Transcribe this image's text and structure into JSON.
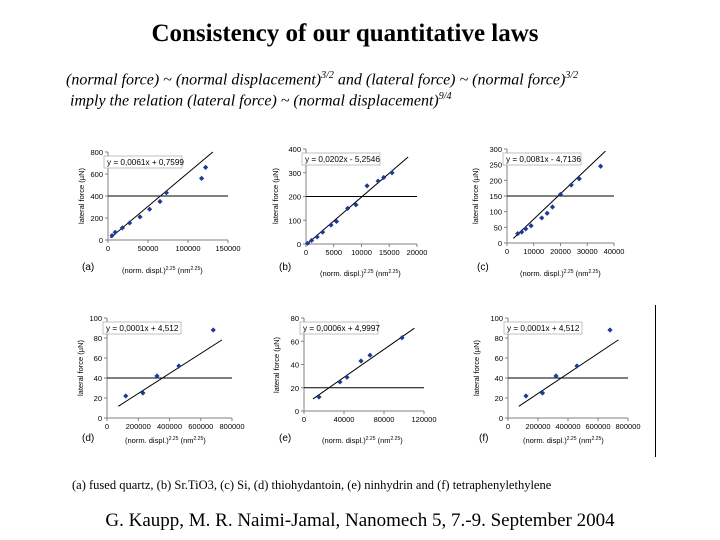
{
  "title": "Consistency of our quantitative laws",
  "subtitle": {
    "l1_a": "(normal force) ~ (normal displacement)",
    "l1_b": "3/2",
    "l1_c": " and  (lateral force) ~ (normal force)",
    "l1_d": "3/2",
    "l2_a": " imply the relation (lateral force) ~ (normal displacement)",
    "l2_b": "9/4"
  },
  "caption": "(a) fused quartz, (b) Sr.TiO3, (c) Si, (d) thiohydantoin, (e) ninhydrin and (f) tetraphenylethylene",
  "footer": "G. Kaupp, M. R. Naimi-Jamal, Nanomech 5, 7.-9. September 2004",
  "colors": {
    "marker": "#1f3a93",
    "line": "#000000",
    "axis": "#808080",
    "grid": "#c0c0c0"
  },
  "chart_data": [
    {
      "panel": "(a)",
      "type": "scatter",
      "equation": "y = 0,0061x + 0,7599",
      "ylabel": "lateral force (µN)",
      "xlabel": "(norm. displ.)",
      "xsup": "2.25",
      "xunit": "(nm",
      "xunit_sup": "2.25",
      "xunit_end": ")",
      "xlim": [
        0,
        150000
      ],
      "ylim": [
        0,
        800
      ],
      "xticks": [
        0,
        50000,
        100000,
        150000
      ],
      "xtick_labels": [
        "0",
        "50000",
        "100000",
        "150000"
      ],
      "yticks": [
        0,
        200,
        400,
        600,
        800
      ],
      "ytick_labels": [
        "0",
        "200",
        "400",
        "600",
        "800"
      ],
      "ref_y": 400,
      "fit": {
        "slope": 0.0061,
        "intercept": 0.7599
      },
      "points": [
        [
          5000,
          40
        ],
        [
          9000,
          70
        ],
        [
          18000,
          110
        ],
        [
          27000,
          155
        ],
        [
          40000,
          210
        ],
        [
          52000,
          280
        ],
        [
          65000,
          350
        ],
        [
          73000,
          430
        ],
        [
          117000,
          560
        ],
        [
          122000,
          660
        ]
      ]
    },
    {
      "panel": "(b)",
      "type": "scatter",
      "equation": "y = 0,0202x - 5,2546",
      "ylabel": "lateral force (µN)",
      "xlabel": "(norm. displ.)",
      "xsup": "2.25",
      "xunit": "(nm",
      "xunit_sup": "2.25",
      "xunit_end": ")",
      "xlim": [
        0,
        20000
      ],
      "ylim": [
        0,
        400
      ],
      "xticks": [
        0,
        5000,
        10000,
        15000,
        20000
      ],
      "xtick_labels": [
        "0",
        "5000",
        "10000",
        "15000",
        "20000"
      ],
      "yticks": [
        0,
        100,
        200,
        300,
        400
      ],
      "ytick_labels": [
        "0",
        "100",
        "200",
        "300",
        "400"
      ],
      "ref_y": 200,
      "fit": {
        "slope": 0.0202,
        "intercept": -5.2546
      },
      "points": [
        [
          300,
          3
        ],
        [
          1000,
          15
        ],
        [
          2000,
          30
        ],
        [
          3000,
          50
        ],
        [
          4500,
          80
        ],
        [
          5500,
          95
        ],
        [
          7500,
          150
        ],
        [
          9000,
          165
        ],
        [
          11000,
          245
        ],
        [
          13000,
          265
        ],
        [
          14000,
          280
        ],
        [
          15500,
          300
        ]
      ]
    },
    {
      "panel": "(c)",
      "type": "scatter",
      "equation": "y = 0,0081x - 4,7136",
      "ylabel": "lateral force (µN)",
      "xlabel": "(norm. displ.)",
      "xsup": "2.25",
      "xunit": "(nm",
      "xunit_sup": "2.25",
      "xunit_end": ")",
      "xlim": [
        0,
        40000
      ],
      "ylim": [
        0,
        300
      ],
      "xticks": [
        0,
        10000,
        20000,
        30000,
        40000
      ],
      "xtick_labels": [
        "0",
        "10000",
        "20000",
        "30000",
        "40000"
      ],
      "yticks": [
        0,
        50,
        100,
        150,
        200,
        250,
        300
      ],
      "ytick_labels": [
        "0",
        "50",
        "100",
        "150",
        "200",
        "250",
        "300"
      ],
      "ref_y": 150,
      "fit": {
        "slope": 0.0081,
        "intercept": -4.7136
      },
      "points": [
        [
          4000,
          30
        ],
        [
          5500,
          35
        ],
        [
          7000,
          45
        ],
        [
          9000,
          55
        ],
        [
          13000,
          80
        ],
        [
          15000,
          95
        ],
        [
          17000,
          115
        ],
        [
          20000,
          155
        ],
        [
          24000,
          185
        ],
        [
          27000,
          205
        ],
        [
          35000,
          245
        ]
      ]
    },
    {
      "panel": "(d)",
      "type": "scatter",
      "equation": "y = 0,0001x + 4,512",
      "ylabel": "lateral force (µN)",
      "xlabel": "(norm. displ.)",
      "xsup": "2.25",
      "xunit": "(nm",
      "xunit_sup": "2.25",
      "xunit_end": ")",
      "xlim": [
        0,
        800000
      ],
      "ylim": [
        0,
        100
      ],
      "xticks": [
        0,
        200000,
        400000,
        600000,
        800000
      ],
      "xtick_labels": [
        "0",
        "200000",
        "400000",
        "600000",
        "800000"
      ],
      "yticks": [
        0,
        20,
        40,
        60,
        80,
        100
      ],
      "ytick_labels": [
        "0",
        "20",
        "40",
        "60",
        "80",
        "100"
      ],
      "ref_y": 40,
      "fit": {
        "slope": 0.0001,
        "intercept": 4.512
      },
      "points": [
        [
          120000,
          22
        ],
        [
          230000,
          25
        ],
        [
          320000,
          42
        ],
        [
          460000,
          52
        ],
        [
          680000,
          88
        ]
      ]
    },
    {
      "panel": "(e)",
      "type": "scatter",
      "equation": "y = 0,0006x + 4,9997",
      "ylabel": "lateral force (µN)",
      "xlabel": "(norm. displ.)",
      "xsup": "2.25",
      "xunit": "(nm",
      "xunit_sup": "2.25",
      "xunit_end": ")",
      "xlim": [
        0,
        120000
      ],
      "ylim": [
        0,
        80
      ],
      "xticks": [
        0,
        40000,
        80000,
        120000
      ],
      "xtick_labels": [
        "0",
        "40000",
        "80000",
        "120000"
      ],
      "yticks": [
        0,
        20,
        40,
        60,
        80
      ],
      "ytick_labels": [
        "0",
        "20",
        "40",
        "60",
        "80"
      ],
      "ref_y": 20,
      "fit": {
        "slope": 0.0006,
        "intercept": 4.9997
      },
      "points": [
        [
          15000,
          12
        ],
        [
          36000,
          25
        ],
        [
          43000,
          29
        ],
        [
          57000,
          43
        ],
        [
          66000,
          48
        ],
        [
          98000,
          63
        ]
      ]
    },
    {
      "panel": "(f)",
      "type": "scatter",
      "equation": "y = 0,0001x + 4,512",
      "ylabel": "lateral force (µN)",
      "xlabel": "(norm. displ.)",
      "xsup": "2.25",
      "xunit": "(nm",
      "xunit_sup": "2.25",
      "xunit_end": ")",
      "xlim": [
        0,
        800000
      ],
      "ylim": [
        0,
        100
      ],
      "xticks": [
        0,
        200000,
        400000,
        600000,
        800000
      ],
      "xtick_labels": [
        "0",
        "200000",
        "400000",
        "600000",
        "800000"
      ],
      "yticks": [
        0,
        20,
        40,
        60,
        80,
        100
      ],
      "ytick_labels": [
        "0",
        "20",
        "40",
        "60",
        "80",
        "100"
      ],
      "ref_y": 40,
      "fit": {
        "slope": 0.0001,
        "intercept": 4.512
      },
      "points": [
        [
          120000,
          22
        ],
        [
          230000,
          25
        ],
        [
          320000,
          42
        ],
        [
          460000,
          52
        ],
        [
          680000,
          88
        ]
      ]
    }
  ]
}
